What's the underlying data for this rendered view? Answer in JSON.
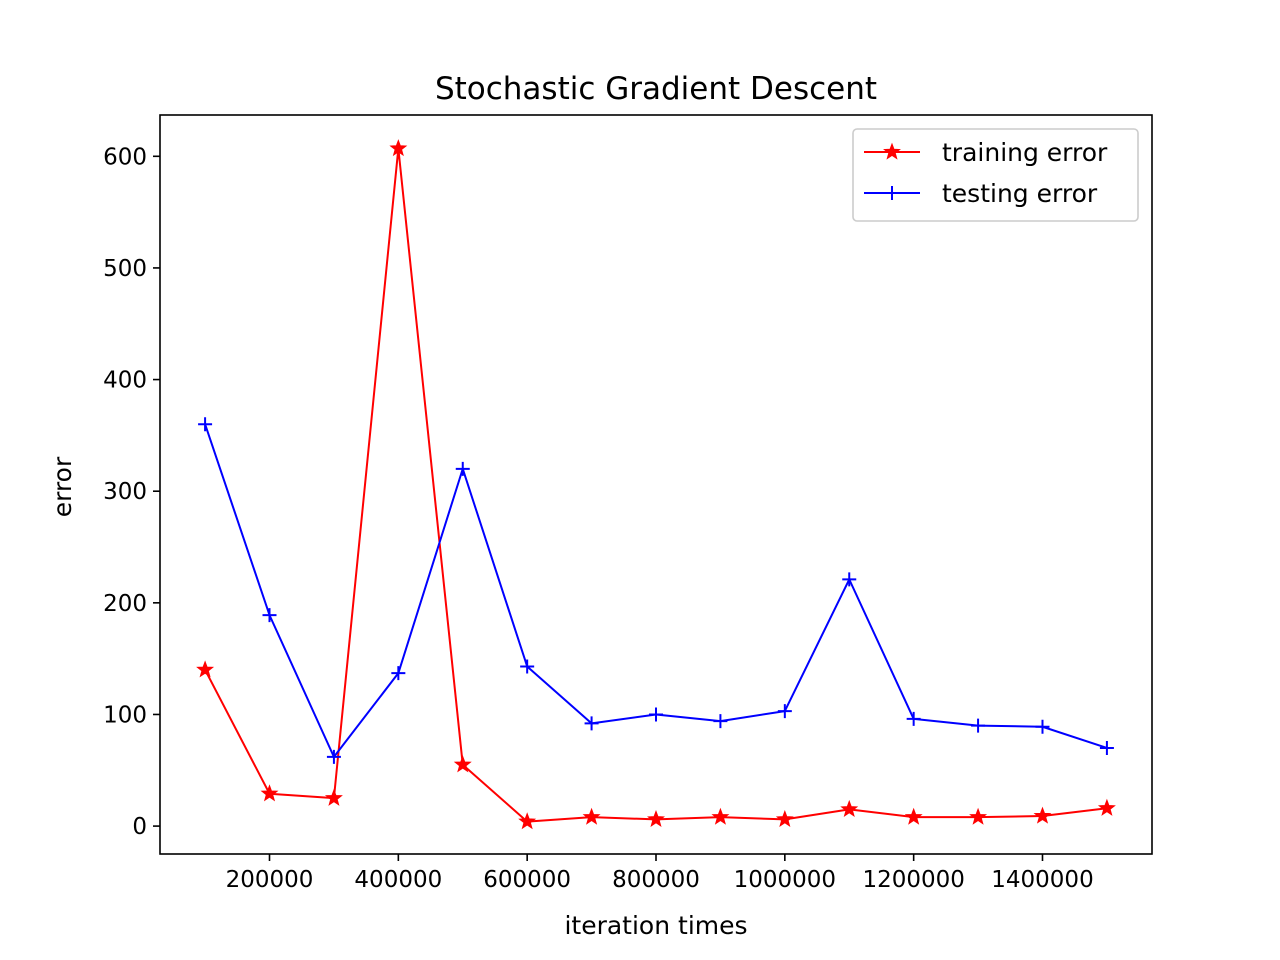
{
  "chart_data": {
    "type": "line",
    "title": "Stochastic Gradient Descent",
    "xlabel": "iteration times",
    "ylabel": "error",
    "x": [
      100000,
      200000,
      300000,
      400000,
      500000,
      600000,
      700000,
      800000,
      900000,
      1000000,
      1100000,
      1200000,
      1300000,
      1400000,
      1500000
    ],
    "xlim": [
      30000,
      1570000
    ],
    "ylim": [
      -25,
      637
    ],
    "xticks": [
      200000,
      400000,
      600000,
      800000,
      1000000,
      1200000,
      1400000
    ],
    "xtick_labels": [
      "200000",
      "400000",
      "600000",
      "800000",
      "1000000",
      "1200000",
      "1400000"
    ],
    "yticks": [
      0,
      100,
      200,
      300,
      400,
      500,
      600
    ],
    "ytick_labels": [
      "0",
      "100",
      "200",
      "300",
      "400",
      "500",
      "600"
    ],
    "grid": false,
    "legend": "top-right",
    "series": [
      {
        "name": "training error",
        "color": "#ff0000",
        "marker": "star",
        "values": [
          140,
          29,
          25,
          607,
          55,
          4,
          8,
          6,
          8,
          6,
          15,
          8,
          8,
          9,
          16
        ]
      },
      {
        "name": "testing error",
        "color": "#0000ff",
        "marker": "plus",
        "values": [
          360,
          189,
          62,
          137,
          320,
          143,
          92,
          100,
          94,
          103,
          221,
          96,
          90,
          89,
          70
        ]
      }
    ]
  }
}
